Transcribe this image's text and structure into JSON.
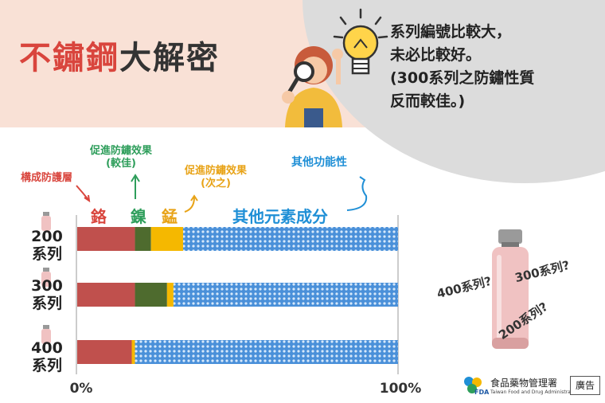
{
  "header": {
    "title_red": "不鏽鋼",
    "title_dark": "大解密",
    "headline_lines": [
      "系列編號比較大，",
      "未必比較好。",
      "(300系列之防鏽性質",
      "反而較佳。)"
    ]
  },
  "annotations": {
    "protect_layer": "構成防護層",
    "nickel_note_1": "促進防鏽效果",
    "nickel_note_2": "(較佳)",
    "manganese_note_1": "促進防鏽效果",
    "manganese_note_2": "(次之)",
    "other_note": "其他功能性"
  },
  "colors": {
    "chromium": "#c0504d",
    "nickel": "#4e6b2e",
    "manganese": "#f5b800",
    "other": "#4a90d9",
    "accent_red": "#d9453d",
    "accent_green": "#2e9e5b",
    "accent_orange": "#e8a317",
    "accent_blue": "#1f8fd6"
  },
  "chart_data": {
    "type": "bar",
    "orientation": "horizontal",
    "stacked": true,
    "categories": [
      "200\n系列",
      "300\n系列",
      "400\n系列"
    ],
    "series": [
      {
        "name": "鉻",
        "values": [
          18,
          18,
          17
        ]
      },
      {
        "name": "鎳",
        "values": [
          5,
          10,
          0
        ]
      },
      {
        "name": "錳",
        "values": [
          10,
          2,
          1
        ]
      },
      {
        "name": "其他元素成分",
        "values": [
          67,
          70,
          82
        ]
      }
    ],
    "xlim": [
      0,
      100
    ],
    "tick_labels": [
      "0%",
      "100%"
    ],
    "grid": false
  },
  "side": {
    "q400": "400系列?",
    "q300": "300系列?",
    "q200": "200系列?"
  },
  "footer": {
    "agency_zh": "食品藥物管理署",
    "agency_en": "Taiwan Food and Drug Administration",
    "fda": "FDA",
    "ad": "廣告"
  }
}
